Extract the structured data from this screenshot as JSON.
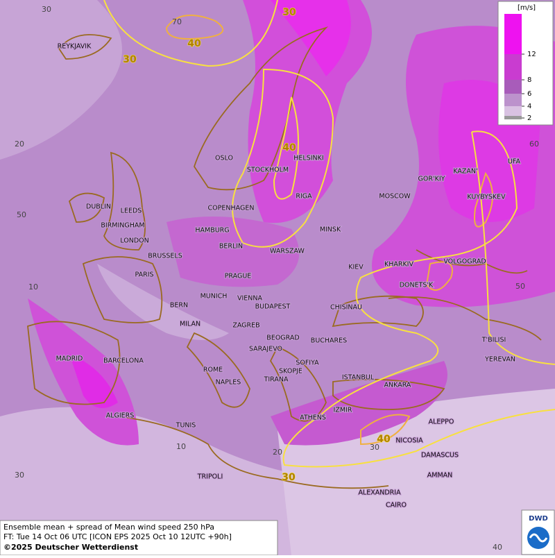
{
  "map": {
    "cities": [
      "REYKJAVIK",
      "OSLO",
      "HELSINKI",
      "STOCKHOLM",
      "RIGA",
      "MOSCOW",
      "GOR'KIY",
      "KAZAN'",
      "UFA",
      "KUYBYSKEV",
      "DUBLIN",
      "LEEDS",
      "COPENHAGEN",
      "BIRMINGHAM",
      "HAMBURG",
      "MINSK",
      "LONDON",
      "BERLIN",
      "WARSZAW",
      "BRUSSELS",
      "KHARKIV",
      "VOLGOGRAD",
      "KIEV",
      "PARIS",
      "PRAGUE",
      "DONETS'K",
      "MUNICH",
      "VIENNA",
      "BERN",
      "BUDAPEST",
      "CHISINAU",
      "MILAN",
      "ZAGREB",
      "BEOGRAD",
      "BUCHARES",
      "T'BILISI",
      "MADRID",
      "BARCELONA",
      "YEREVAN",
      "SOFIYA",
      "ROME",
      "SARAJEVO",
      "SKOPJE",
      "TIRANA",
      "NAPLES",
      "ISTANBUL",
      "ANKARA",
      "ALGIERS",
      "IZMIR",
      "ATHENS",
      "ALEPPO",
      "TUNIS",
      "NICOSIA",
      "DAMASCUS",
      "TRIPOLI",
      "AMMAN",
      "ALEXANDRIA",
      "CAIRO"
    ],
    "grid_labels": [
      30,
      70,
      20,
      50,
      10,
      60,
      50,
      10,
      20,
      30,
      30,
      40
    ],
    "contour_labels": [
      30,
      40,
      30,
      40,
      40,
      30
    ],
    "legend": {
      "unit": "[m/s]",
      "ticks": [
        12,
        8,
        6,
        4,
        2
      ]
    },
    "footer": [
      "Ensemble mean + spread of Mean wind speed 250 hPa",
      "FT: Tue 14 Oct 06 UTC [ICON EPS 2025 Oct 10 12UTC +90h]",
      "©2025 Deutscher Wetterdienst"
    ],
    "logo": "DWD"
  }
}
